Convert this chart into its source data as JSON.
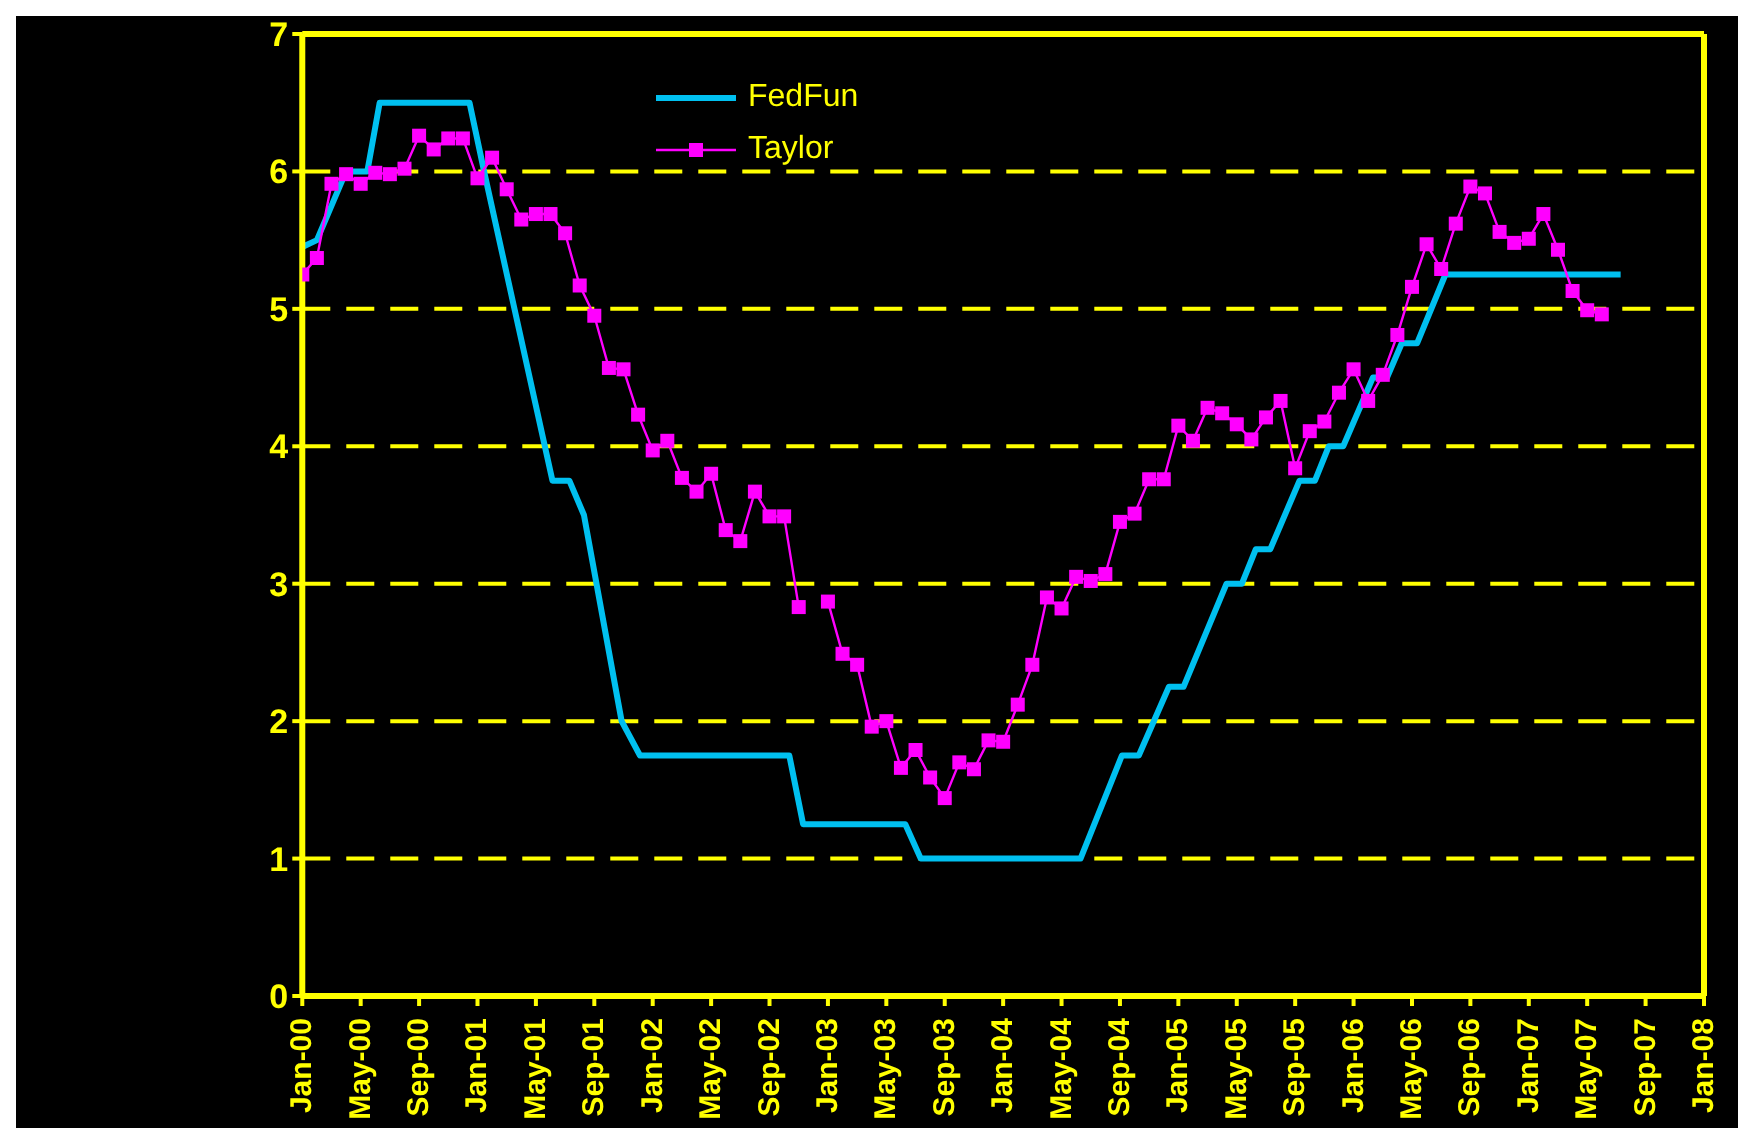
{
  "chart_data": {
    "type": "line",
    "legend": "top",
    "grid": "y",
    "xlim": [
      "2000-01",
      "2008-01"
    ],
    "xticks": [
      {
        "value": "2000-01",
        "label": "Jan-00"
      },
      {
        "value": "2000-05",
        "label": "May-00"
      },
      {
        "value": "2000-09",
        "label": "Sep-00"
      },
      {
        "value": "2001-01",
        "label": "Jan-01"
      },
      {
        "value": "2001-05",
        "label": "May-01"
      },
      {
        "value": "2001-09",
        "label": "Sep-01"
      },
      {
        "value": "2002-01",
        "label": "Jan-02"
      },
      {
        "value": "2002-05",
        "label": "May-02"
      },
      {
        "value": "2002-09",
        "label": "Sep-02"
      },
      {
        "value": "2003-01",
        "label": "Jan-03"
      },
      {
        "value": "2003-05",
        "label": "May-03"
      },
      {
        "value": "2003-09",
        "label": "Sep-03"
      },
      {
        "value": "2004-01",
        "label": "Jan-04"
      },
      {
        "value": "2004-05",
        "label": "May-04"
      },
      {
        "value": "2004-09",
        "label": "Sep-04"
      },
      {
        "value": "2005-01",
        "label": "Jan-05"
      },
      {
        "value": "2005-05",
        "label": "May-05"
      },
      {
        "value": "2005-09",
        "label": "Sep-05"
      },
      {
        "value": "2006-01",
        "label": "Jan-06"
      },
      {
        "value": "2006-05",
        "label": "May-06"
      },
      {
        "value": "2006-09",
        "label": "Sep-06"
      },
      {
        "value": "2007-01",
        "label": "Jan-07"
      },
      {
        "value": "2007-05",
        "label": "May-07"
      },
      {
        "value": "2007-09",
        "label": "Sep-07"
      },
      {
        "value": "2008-01",
        "label": "Jan-08"
      }
    ],
    "ylim": [
      0,
      7
    ],
    "yticks": [
      0,
      1,
      2,
      3,
      4,
      5,
      6,
      7
    ],
    "series": [
      {
        "name": "FedFun",
        "color": "#00c0f0",
        "marker": "none",
        "x": [
          "2000-01-01",
          "2000-02-01",
          "2000-04-01",
          "2000-05-15",
          "2000-06-10",
          "2000-12-15",
          "2001-01-15",
          "2001-06-05",
          "2001-07-10",
          "2001-08-10",
          "2001-10-28",
          "2001-12-05",
          "2002-10-12",
          "2002-11-10",
          "2003-06-10",
          "2003-07-12",
          "2004-06-10",
          "2004-09-05",
          "2004-10-10",
          "2004-12-12",
          "2005-01-12",
          "2005-04-10",
          "2005-05-12",
          "2005-06-10",
          "2005-07-10",
          "2005-09-10",
          "2005-10-12",
          "2005-11-10",
          "2005-12-10",
          "2006-02-10",
          "2006-03-10",
          "2006-04-10",
          "2006-05-12",
          "2006-07-10",
          "2007-07-10"
        ],
        "values": [
          5.45,
          5.5,
          6.0,
          6.0,
          6.5,
          6.5,
          6.0,
          3.75,
          3.75,
          3.5,
          2.0,
          1.75,
          1.75,
          1.25,
          1.25,
          1.0,
          1.0,
          1.75,
          1.75,
          2.25,
          2.25,
          3.0,
          3.0,
          3.25,
          3.25,
          3.75,
          3.75,
          4.0,
          4.0,
          4.5,
          4.5,
          4.75,
          4.75,
          5.25,
          5.25
        ]
      },
      {
        "name": "Taylor",
        "color": "#ff00ff",
        "marker": "square",
        "x": [
          "2000-01",
          "2000-02",
          "2000-03",
          "2000-04",
          "2000-05",
          "2000-06",
          "2000-07",
          "2000-08",
          "2000-09",
          "2000-10",
          "2000-11",
          "2000-12",
          "2001-01",
          "2001-02",
          "2001-03",
          "2001-04",
          "2001-05",
          "2001-06",
          "2001-07",
          "2001-08",
          "2001-09",
          "2001-10",
          "2001-11",
          "2001-12",
          "2002-01",
          "2002-02",
          "2002-03",
          "2002-04",
          "2002-05",
          "2002-06",
          "2002-07",
          "2002-08",
          "2002-09",
          "2002-10",
          "2002-11",
          "2002-12",
          "2003-01",
          "2003-02",
          "2003-03",
          "2003-04",
          "2003-05",
          "2003-06",
          "2003-07",
          "2003-08",
          "2003-09",
          "2003-10",
          "2003-11",
          "2003-12",
          "2004-01",
          "2004-02",
          "2004-03",
          "2004-04",
          "2004-05",
          "2004-06",
          "2004-07",
          "2004-08",
          "2004-09",
          "2004-10",
          "2004-11",
          "2004-12",
          "2005-01",
          "2005-02",
          "2005-03",
          "2005-04",
          "2005-05",
          "2005-06",
          "2005-07",
          "2005-08",
          "2005-09",
          "2005-10",
          "2005-11",
          "2005-12",
          "2006-01",
          "2006-02",
          "2006-03",
          "2006-04",
          "2006-05",
          "2006-06",
          "2006-07",
          "2006-08",
          "2006-09",
          "2006-10",
          "2006-11",
          "2006-12",
          "2007-01",
          "2007-02",
          "2007-03",
          "2007-04",
          "2007-05",
          "2007-06"
        ],
        "values": [
          5.25,
          5.37,
          5.91,
          5.98,
          5.91,
          5.99,
          5.98,
          6.02,
          6.26,
          6.16,
          6.24,
          6.24,
          5.95,
          6.1,
          5.87,
          5.65,
          5.69,
          5.69,
          5.55,
          5.17,
          4.95,
          4.57,
          4.56,
          4.23,
          3.97,
          4.04,
          3.77,
          3.67,
          3.8,
          3.39,
          3.31,
          3.67,
          3.49,
          3.49,
          2.83,
          null,
          2.87,
          2.49,
          2.41,
          1.96,
          2.0,
          1.66,
          1.79,
          1.59,
          1.44,
          1.7,
          1.65,
          1.86,
          1.85,
          2.12,
          2.41,
          2.9,
          2.82,
          3.05,
          3.02,
          3.07,
          3.45,
          3.51,
          3.76,
          3.76,
          4.15,
          4.04,
          4.28,
          4.24,
          4.16,
          4.05,
          4.21,
          4.33,
          3.84,
          4.11,
          4.18,
          4.39,
          4.56,
          4.33,
          4.52,
          4.81,
          5.16,
          5.47,
          5.29,
          5.62,
          5.89,
          5.84,
          5.56,
          5.48,
          5.51,
          5.69,
          5.43,
          5.13,
          4.99,
          4.96
        ]
      }
    ]
  }
}
